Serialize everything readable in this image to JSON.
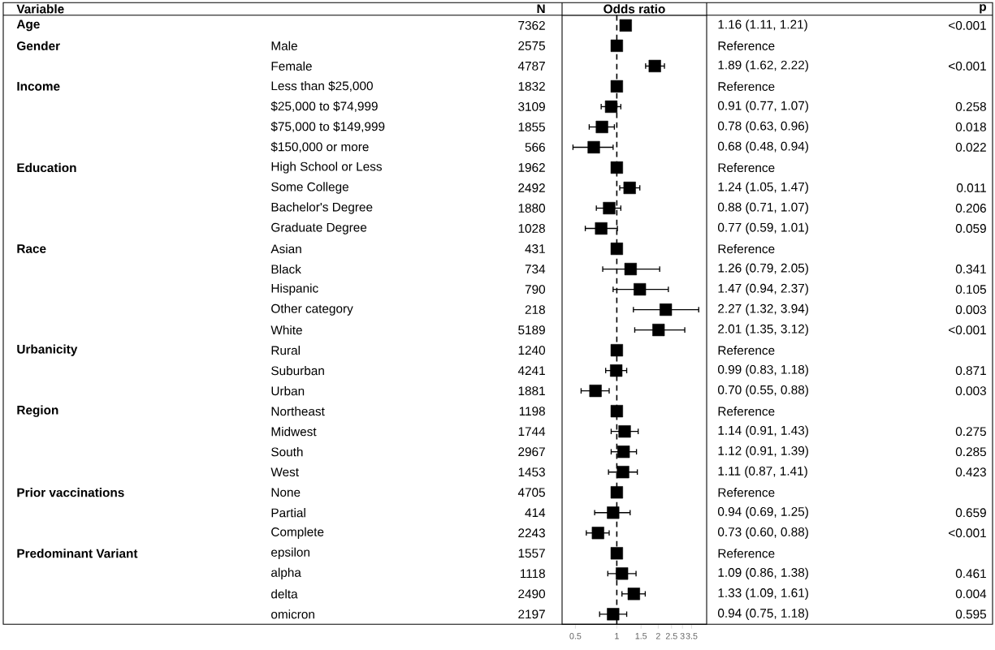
{
  "chart_data": [
    {
      "type": "other",
      "title": "Variable",
      "categories": [
        "Age",
        "Gender",
        null,
        "Income",
        null,
        null,
        null,
        "Education",
        null,
        null,
        null,
        "Race",
        null,
        null,
        null,
        null,
        "Urbanicity",
        null,
        null,
        "Region",
        null,
        null,
        null,
        "Prior vaccinations",
        null,
        null,
        "Predominant Variant",
        null,
        null,
        null
      ]
    },
    {
      "type": "other",
      "categories": [
        null,
        "Male",
        "Female",
        "Less than $25,000",
        "$25,000 to $74,999",
        "$75,000 to $149,999",
        "$150,000 or more",
        "High School or Less",
        "Some College",
        "Bachelor's Degree",
        "Graduate Degree",
        "Asian",
        "Black",
        "Hispanic",
        "Other category",
        "White",
        "Rural",
        "Suburban",
        "Urban",
        "Northeast",
        "Midwest",
        "South",
        "West",
        "None",
        "Partial",
        "Complete",
        "epsilon",
        "alpha",
        "delta",
        "omicron"
      ]
    },
    {
      "type": "other",
      "title": "N",
      "categories": [
        "7362",
        "2575",
        "4787",
        "1832",
        "3109",
        "1855",
        "566",
        "1962",
        "2492",
        "1880",
        "1028",
        "431",
        "734",
        "790",
        "218",
        "5189",
        "1240",
        "4241",
        "1881",
        "1198",
        "1744",
        "2967",
        "1453",
        "4705",
        "414",
        "2243",
        "1557",
        "1118",
        "2490",
        "2197"
      ]
    },
    {
      "type": "scatter",
      "orientation": "horizontal",
      "xlabel": "Odds ratio",
      "color": "#000000",
      "marker": "square",
      "log": "x",
      "tick_labels": "x",
      "categories": [
        null,
        null,
        null,
        null,
        null,
        null,
        null,
        null,
        null,
        null,
        null,
        null,
        null,
        null,
        null,
        null,
        null,
        null,
        null,
        null,
        null,
        null,
        null,
        null,
        null,
        null,
        null,
        null,
        null,
        null
      ],
      "values": [
        1.16,
        1,
        1.89,
        1,
        0.91,
        0.78,
        0.68,
        1,
        1.24,
        0.88,
        0.77,
        1,
        1.26,
        1.47,
        2.27,
        2.01,
        1,
        0.99,
        0.7,
        1,
        1.14,
        1.12,
        1.11,
        1,
        0.94,
        0.73,
        1,
        1.09,
        1.33,
        0.94
      ],
      "errors": [
        null,
        null,
        [
          1.62,
          2.22
        ],
        null,
        [
          0.77,
          1.07
        ],
        [
          0.63,
          0.96
        ],
        [
          0.48,
          0.94
        ],
        null,
        [
          1.05,
          1.47
        ],
        [
          0.71,
          1.07
        ],
        [
          0.59,
          1.01
        ],
        null,
        [
          0.79,
          2.05
        ],
        [
          0.94,
          2.37
        ],
        [
          1.32,
          3.94
        ],
        [
          1.35,
          3.12
        ],
        null,
        [
          0.83,
          1.18
        ],
        [
          0.55,
          0.88
        ],
        null,
        [
          0.91,
          1.43
        ],
        [
          0.91,
          1.39
        ],
        [
          0.87,
          1.41
        ],
        null,
        [
          0.69,
          1.25
        ],
        [
          0.6,
          0.88
        ],
        null,
        [
          0.86,
          1.38
        ],
        [
          1.09,
          1.61
        ],
        [
          0.75,
          1.18
        ]
      ],
      "xlim": [
        0.4,
        4.5
      ],
      "xticks": [
        0.5,
        1,
        1.5,
        2,
        2.5,
        3,
        3.5
      ],
      "ref_lines": [
        {
          "axis": "x",
          "value": 1,
          "color": "#000000",
          "line_style": "dashed"
        }
      ]
    },
    {
      "type": "other",
      "categories": [
        "1.16 (1.11, 1.21)",
        "Reference",
        "1.89 (1.62, 2.22)",
        "Reference",
        "0.91 (0.77, 1.07)",
        "0.78 (0.63, 0.96)",
        "0.68 (0.48, 0.94)",
        "Reference",
        "1.24 (1.05, 1.47)",
        "0.88 (0.71, 1.07)",
        "0.77 (0.59, 1.01)",
        "Reference",
        "1.26 (0.79, 2.05)",
        "1.47 (0.94, 2.37)",
        "2.27 (1.32, 3.94)",
        "2.01 (1.35, 3.12)",
        "Reference",
        "0.99 (0.83, 1.18)",
        "0.70 (0.55, 0.88)",
        "Reference",
        "1.14 (0.91, 1.43)",
        "1.12 (0.91, 1.39)",
        "1.11 (0.87, 1.41)",
        "Reference",
        "0.94 (0.69, 1.25)",
        "0.73 (0.60, 0.88)",
        "Reference",
        "1.09 (0.86, 1.38)",
        "1.33 (1.09, 1.61)",
        "0.94 (0.75, 1.18)"
      ]
    },
    {
      "type": "other",
      "title": "p",
      "categories": [
        "<0.001",
        null,
        "<0.001",
        null,
        "0.258",
        "0.018",
        "0.022",
        null,
        "0.011",
        "0.206",
        "0.059",
        null,
        "0.341",
        "0.105",
        "0.003",
        "<0.001",
        null,
        "0.871",
        "0.003",
        null,
        "0.275",
        "0.285",
        "0.423",
        null,
        "0.659",
        "<0.001",
        null,
        "0.461",
        "0.004",
        "0.595"
      ]
    }
  ]
}
